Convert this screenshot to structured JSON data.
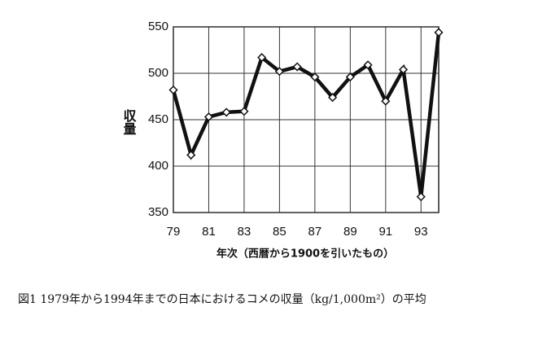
{
  "chart_data": {
    "type": "line",
    "y_label": "収量",
    "x_label": "年次（西暦から1900を引いたもの）",
    "caption": "図1 1979年から1994年までの日本におけるコメの収量（kg/1,000m²）の平均",
    "x": [
      79,
      80,
      81,
      82,
      83,
      84,
      85,
      86,
      87,
      88,
      89,
      90,
      91,
      92,
      93,
      94
    ],
    "series": [
      {
        "color": "#111111",
        "values": [
          482,
          412,
          453,
          458,
          459,
          517,
          502,
          507,
          496,
          474,
          496,
          509,
          470,
          504,
          367,
          544
        ]
      }
    ],
    "xlim": [
      79,
      94
    ],
    "xticks": [
      79,
      81,
      83,
      85,
      87,
      89,
      91,
      93
    ],
    "ylim": [
      350,
      550
    ],
    "yticks": [
      350,
      400,
      450,
      500,
      550
    ],
    "grid": true
  }
}
